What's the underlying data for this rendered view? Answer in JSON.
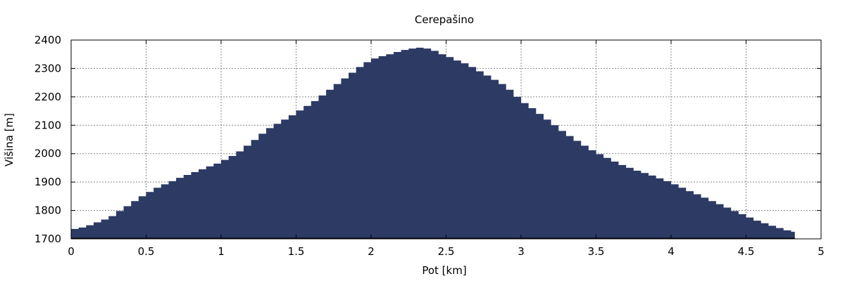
{
  "chart_data": {
    "type": "area",
    "title": "Cerepašino",
    "xlabel": "Pot [km]",
    "ylabel": "Višina [m]",
    "xlim": [
      0,
      5
    ],
    "ylim": [
      1700,
      2400
    ],
    "x_ticks": [
      0,
      0.5,
      1,
      1.5,
      2,
      2.5,
      3,
      3.5,
      4,
      4.5,
      5
    ],
    "x_tick_labels": [
      "0",
      "0.5",
      "1",
      "1.5",
      "2",
      "2.5",
      "3",
      "3.5",
      "4",
      "4.5",
      "5"
    ],
    "y_ticks": [
      1700,
      1800,
      1900,
      2000,
      2100,
      2200,
      2300,
      2400
    ],
    "y_tick_labels": [
      "1700",
      "1800",
      "1900",
      "2000",
      "2100",
      "2200",
      "2300",
      "2400"
    ],
    "grid": true,
    "step": true,
    "fill_color": "#2c3a64",
    "x": [
      0.0,
      0.05,
      0.1,
      0.15,
      0.2,
      0.25,
      0.3,
      0.35,
      0.4,
      0.45,
      0.5,
      0.55,
      0.6,
      0.65,
      0.7,
      0.75,
      0.8,
      0.85,
      0.9,
      0.95,
      1.0,
      1.05,
      1.1,
      1.15,
      1.2,
      1.25,
      1.3,
      1.35,
      1.4,
      1.45,
      1.5,
      1.55,
      1.6,
      1.65,
      1.7,
      1.75,
      1.8,
      1.85,
      1.9,
      1.95,
      2.0,
      2.05,
      2.1,
      2.15,
      2.2,
      2.25,
      2.3,
      2.35,
      2.4,
      2.45,
      2.5,
      2.55,
      2.6,
      2.65,
      2.7,
      2.75,
      2.8,
      2.85,
      2.9,
      2.95,
      3.0,
      3.05,
      3.1,
      3.15,
      3.2,
      3.25,
      3.3,
      3.35,
      3.4,
      3.45,
      3.5,
      3.55,
      3.6,
      3.65,
      3.7,
      3.75,
      3.8,
      3.85,
      3.9,
      3.95,
      4.0,
      4.05,
      4.1,
      4.15,
      4.2,
      4.25,
      4.3,
      4.35,
      4.4,
      4.45,
      4.5,
      4.55,
      4.6,
      4.65,
      4.7,
      4.75,
      4.8
    ],
    "y": [
      1735,
      1740,
      1748,
      1758,
      1768,
      1780,
      1798,
      1815,
      1833,
      1850,
      1865,
      1880,
      1892,
      1903,
      1915,
      1925,
      1935,
      1945,
      1955,
      1965,
      1978,
      1992,
      2008,
      2028,
      2048,
      2070,
      2090,
      2105,
      2120,
      2135,
      2152,
      2168,
      2185,
      2205,
      2225,
      2245,
      2265,
      2285,
      2305,
      2322,
      2335,
      2343,
      2350,
      2358,
      2365,
      2370,
      2373,
      2370,
      2362,
      2350,
      2340,
      2328,
      2318,
      2305,
      2290,
      2275,
      2260,
      2245,
      2225,
      2200,
      2178,
      2160,
      2140,
      2120,
      2100,
      2080,
      2062,
      2045,
      2028,
      2012,
      1998,
      1985,
      1972,
      1960,
      1950,
      1940,
      1932,
      1923,
      1913,
      1903,
      1892,
      1880,
      1868,
      1857,
      1845,
      1833,
      1822,
      1810,
      1798,
      1787,
      1775,
      1764,
      1755,
      1746,
      1738,
      1730,
      1725
    ]
  }
}
